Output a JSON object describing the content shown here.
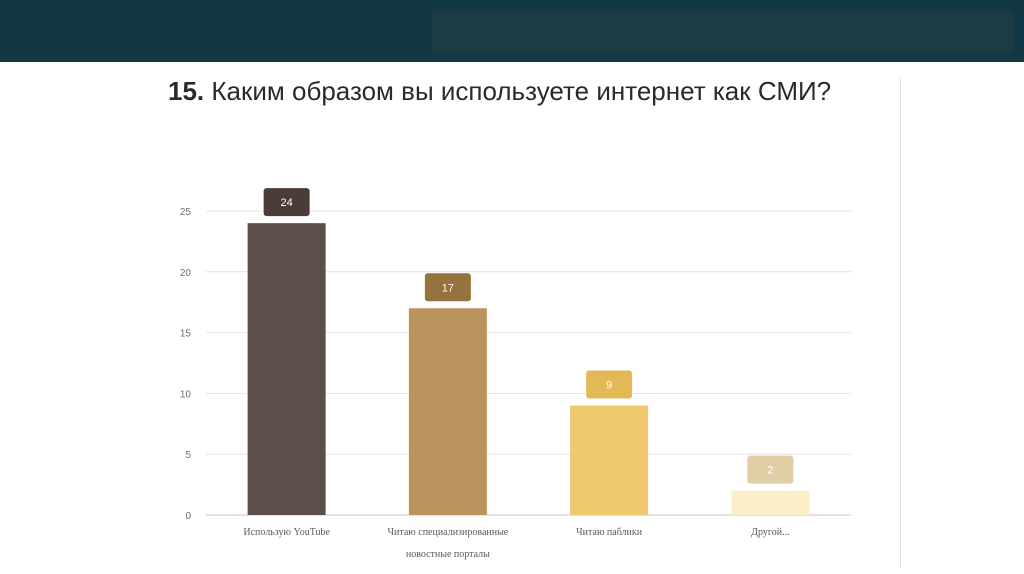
{
  "question": {
    "number": "15.",
    "text": "Каким образом вы используете интернет как СМИ?"
  },
  "colors": {
    "header_bg": "#123843",
    "header_inset": "#1c3b43",
    "bars": [
      "#5e4e4b",
      "#ba935d",
      "#efc96d",
      "#fceec9"
    ],
    "label_boxes": [
      "#4c3c37",
      "#96723f",
      "#e2b955",
      "#e0cfa4"
    ]
  },
  "chart_data": {
    "type": "bar",
    "categories": [
      [
        "Использую YouTube"
      ],
      [
        "Читаю специализированные",
        "новостные порталы"
      ],
      [
        "Читаю паблики"
      ],
      [
        "Другой..."
      ]
    ],
    "values": [
      24,
      17,
      9,
      2
    ],
    "data_labels": [
      "24",
      "17",
      "9",
      "2"
    ],
    "yticks": [
      "0",
      "5",
      "10",
      "15",
      "20",
      "25"
    ],
    "ylim": [
      0,
      25
    ],
    "grid": true,
    "title": "",
    "xlabel": "",
    "ylabel": ""
  }
}
